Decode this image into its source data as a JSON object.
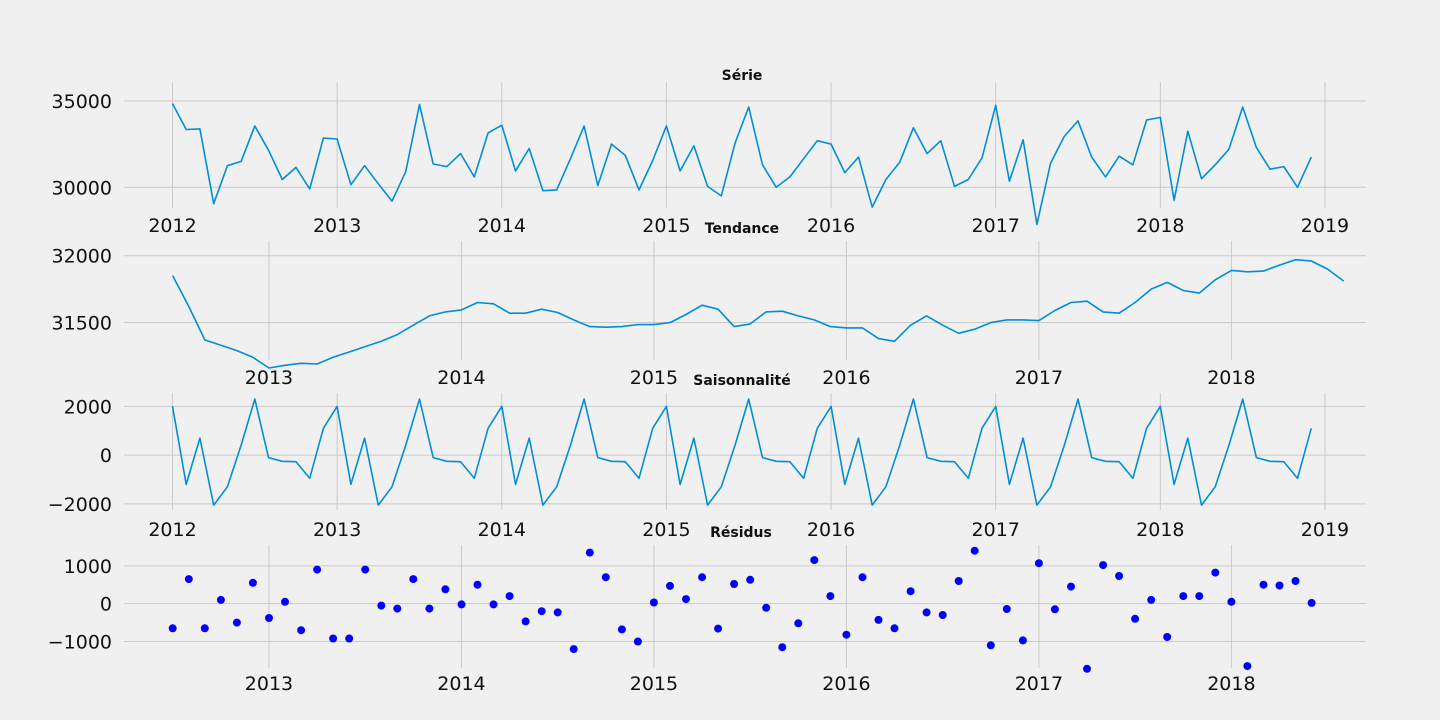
{
  "chart_data": [
    {
      "type": "line",
      "title": "Série",
      "color": "#008fd5",
      "x_ticks": [
        "2012",
        "2013",
        "2014",
        "2015",
        "2016",
        "2017",
        "2018",
        "2019"
      ],
      "y_ticks": [
        "30000",
        "35000"
      ],
      "y_tick_values": [
        30000,
        35000
      ],
      "ylim": [
        28800,
        36100
      ],
      "x_start": "2012-01",
      "values": [
        34850,
        33350,
        33380,
        29050,
        31250,
        31500,
        33550,
        32150,
        30450,
        31150,
        29900,
        32850,
        32800,
        30150,
        31250,
        30200,
        29200,
        30900,
        34800,
        31350,
        31200,
        31950,
        30600,
        33150,
        33600,
        30950,
        32250,
        29800,
        29850,
        31650,
        33550,
        30100,
        32500,
        31850,
        29850,
        31550,
        33550,
        30950,
        32400,
        30050,
        29500,
        32550,
        34650,
        31300,
        30000,
        30600,
        31650,
        32700,
        32500,
        30850,
        31750,
        28850,
        30450,
        31450,
        33450,
        31950,
        32700,
        30050,
        30450,
        31700,
        34750,
        30350,
        32750,
        27850,
        31400,
        32950,
        33850,
        31750,
        30600,
        31800,
        31300,
        33900,
        34050,
        29250,
        33250,
        30500,
        31300,
        32200,
        34650,
        32300,
        31050,
        31200,
        30000,
        31750
      ]
    },
    {
      "type": "line",
      "title": "Tendance",
      "color": "#008fd5",
      "x_ticks": [
        "2013",
        "2014",
        "2015",
        "2016",
        "2017",
        "2018"
      ],
      "y_ticks": [
        "31500",
        "32000"
      ],
      "y_tick_values": [
        31500,
        32000
      ],
      "ylim": [
        31220,
        32110
      ],
      "x_start": "2012-07",
      "values": [
        31850,
        31620,
        31370,
        31330,
        31290,
        31240,
        31160,
        31180,
        31195,
        31190,
        31240,
        31280,
        31320,
        31360,
        31410,
        31480,
        31550,
        31580,
        31595,
        31650,
        31640,
        31570,
        31570,
        31600,
        31575,
        31520,
        31470,
        31465,
        31470,
        31485,
        31485,
        31500,
        31560,
        31630,
        31600,
        31470,
        31490,
        31580,
        31585,
        31550,
        31520,
        31470,
        31460,
        31460,
        31380,
        31360,
        31480,
        31550,
        31480,
        31420,
        31450,
        31500,
        31520,
        31520,
        31515,
        31590,
        31650,
        31660,
        31580,
        31570,
        31650,
        31750,
        31800,
        31740,
        31720,
        31820,
        31890,
        31880,
        31885,
        31930,
        31970,
        31960,
        31900,
        31810
      ]
    },
    {
      "type": "line",
      "title": "Saisonnalité",
      "color": "#008fd5",
      "x_ticks": [
        "2012",
        "2013",
        "2014",
        "2015",
        "2016",
        "2017",
        "2018",
        "2019"
      ],
      "y_ticks": [
        "−2000",
        "0",
        "2000"
      ],
      "y_tick_values": [
        -2000,
        0,
        2000
      ],
      "ylim": [
        -2250,
        2550
      ],
      "x_start": "2012-01",
      "values": [
        2000,
        -1200,
        700,
        -2050,
        -1300,
        400,
        2300,
        -100,
        -250,
        -270,
        -950,
        1100
      ]
    },
    {
      "type": "scatter",
      "title": "Résidus",
      "color": "#0000ff",
      "x_ticks": [
        "2013",
        "2014",
        "2015",
        "2016",
        "2017",
        "2018"
      ],
      "y_ticks": [
        "−1000",
        "0",
        "1000"
      ],
      "y_tick_values": [
        -1000,
        0,
        1000
      ],
      "ylim": [
        -1700,
        1550
      ],
      "x_start": "2012-07",
      "values": [
        -650,
        650,
        -650,
        100,
        -500,
        550,
        -380,
        50,
        -700,
        900,
        -920,
        -920,
        900,
        -50,
        -130,
        650,
        -130,
        380,
        -20,
        500,
        -20,
        200,
        -470,
        -200,
        -230,
        -1200,
        1350,
        700,
        -680,
        -1000,
        30,
        470,
        120,
        700,
        -660,
        520,
        630,
        -110,
        -1150,
        -520,
        1150,
        200,
        -820,
        700,
        -430,
        -650,
        330,
        -230,
        -300,
        600,
        1400,
        -1100,
        -140,
        -970,
        1070,
        -150,
        450,
        -1720,
        1020,
        730,
        -400,
        100,
        -880,
        200,
        200,
        820,
        50,
        -1650,
        500,
        480,
        600,
        20
      ]
    }
  ]
}
